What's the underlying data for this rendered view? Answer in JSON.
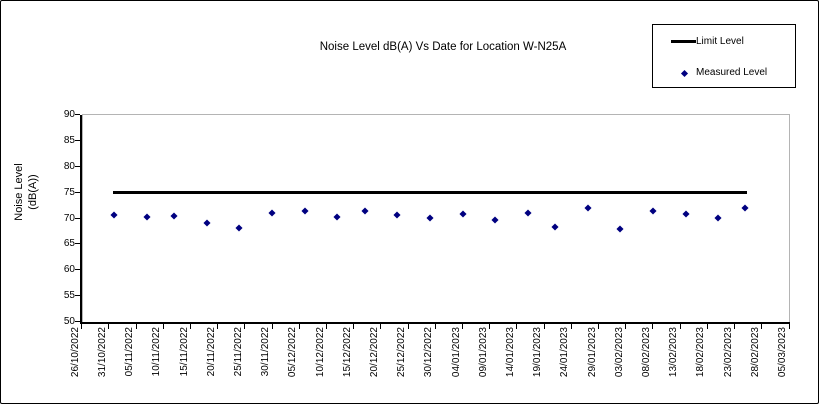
{
  "window": {
    "background": "#ffffff",
    "border_color": "#000000"
  },
  "chart_data": {
    "type": "line+scatter",
    "title": "Noise Level dB(A) Vs Date for Location W-N25A",
    "ylabel": "Noise Level (dB(A))",
    "ylabel_lines": [
      "Noise Level",
      "(dB(A))"
    ],
    "xlabel": "",
    "ylim": [
      50,
      90
    ],
    "y_ticks": [
      50,
      55,
      60,
      65,
      70,
      75,
      80,
      85,
      90
    ],
    "x_tick_labels": [
      "26/10/2022",
      "31/10/2022",
      "05/11/2022",
      "10/11/2022",
      "15/11/2022",
      "20/11/2022",
      "25/11/2022",
      "30/11/2022",
      "05/12/2022",
      "10/12/2022",
      "15/12/2022",
      "20/12/2022",
      "25/12/2022",
      "30/12/2022",
      "04/01/2023",
      "09/01/2023",
      "14/01/2023",
      "19/01/2023",
      "24/01/2023",
      "29/01/2023",
      "03/02/2023",
      "08/02/2023",
      "13/02/2023",
      "18/02/2023",
      "23/02/2023",
      "28/02/2023",
      "05/03/2023"
    ],
    "x_span_days": 130,
    "grid": false,
    "plot_border_color": "#b4b4b4",
    "series": [
      {
        "name": "Limit Level",
        "type": "line",
        "color": "#000000",
        "line_width": 3,
        "value": 75,
        "start_day": 6,
        "end_day": 122
      },
      {
        "name": "Measured Level",
        "type": "scatter",
        "marker": "diamond",
        "color": "#000080",
        "points": [
          {
            "date": "01/11/2022",
            "day": 6,
            "value": 70.5
          },
          {
            "date": "07/11/2022",
            "day": 12,
            "value": 70.1
          },
          {
            "date": "12/11/2022",
            "day": 17,
            "value": 70.3
          },
          {
            "date": "18/11/2022",
            "day": 23,
            "value": 69.0
          },
          {
            "date": "24/11/2022",
            "day": 29,
            "value": 68.1
          },
          {
            "date": "30/11/2022",
            "day": 35,
            "value": 71.0
          },
          {
            "date": "06/12/2022",
            "day": 41,
            "value": 71.4
          },
          {
            "date": "12/12/2022",
            "day": 47,
            "value": 70.1
          },
          {
            "date": "17/12/2022",
            "day": 52,
            "value": 71.4
          },
          {
            "date": "23/12/2022",
            "day": 58,
            "value": 70.5
          },
          {
            "date": "29/12/2022",
            "day": 64,
            "value": 70.0
          },
          {
            "date": "04/01/2023",
            "day": 70,
            "value": 70.7
          },
          {
            "date": "10/01/2023",
            "day": 76,
            "value": 69.6
          },
          {
            "date": "16/01/2023",
            "day": 82,
            "value": 71.0
          },
          {
            "date": "21/01/2023",
            "day": 87,
            "value": 68.3
          },
          {
            "date": "27/01/2023",
            "day": 93,
            "value": 72.0
          },
          {
            "date": "02/02/2023",
            "day": 99,
            "value": 67.8
          },
          {
            "date": "08/02/2023",
            "day": 105,
            "value": 71.4
          },
          {
            "date": "14/02/2023",
            "day": 111,
            "value": 70.7
          },
          {
            "date": "20/02/2023",
            "day": 117,
            "value": 70.0
          },
          {
            "date": "25/02/2023",
            "day": 122,
            "value": 72.0
          }
        ]
      }
    ],
    "legend": {
      "position": "top-right",
      "items": [
        {
          "label": "Limit Level",
          "swatch": "line",
          "color": "#000000"
        },
        {
          "label": "Measured Level",
          "swatch": "diamond",
          "color": "#000080"
        }
      ]
    }
  }
}
